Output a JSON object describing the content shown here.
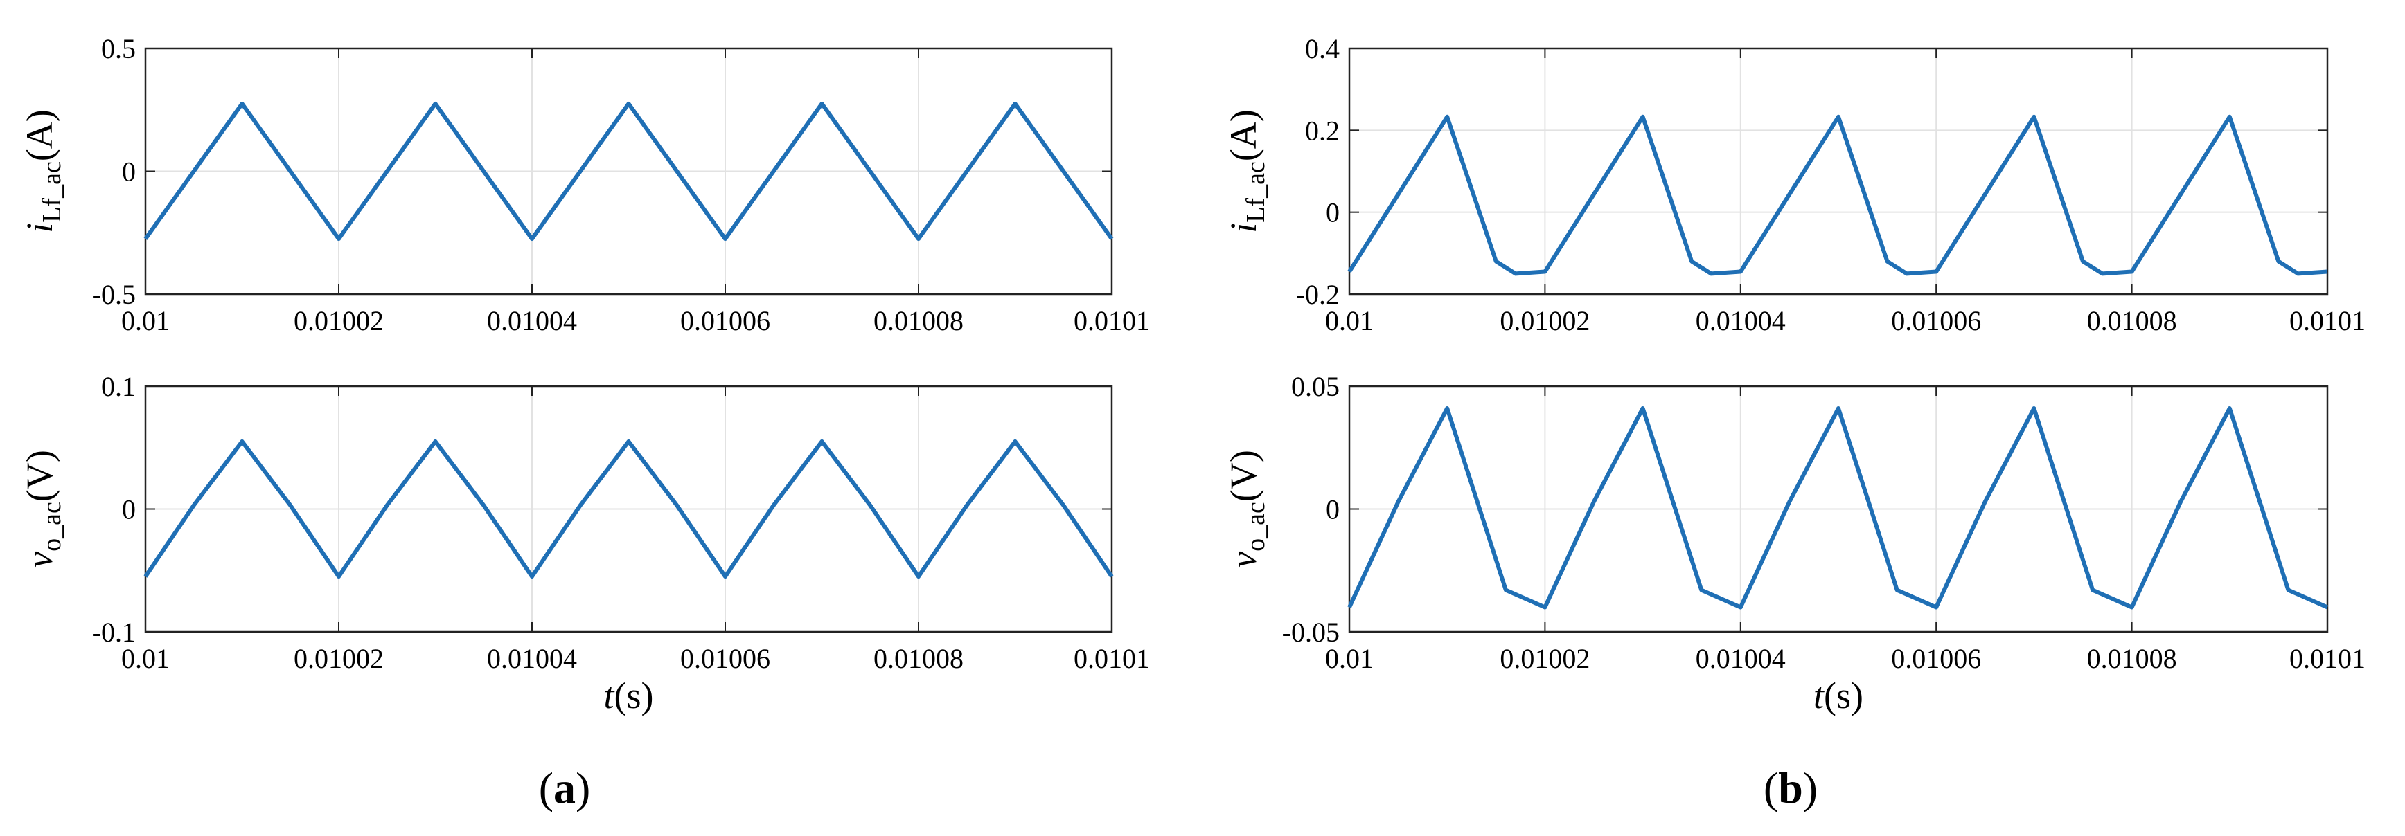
{
  "chart_data": [
    {
      "type": "line",
      "panel": "a",
      "color": "#1f6fb5",
      "xlim": [
        0.01,
        0.0101
      ],
      "ylim": [
        -0.5,
        0.5
      ],
      "xticks": [
        "0.01",
        "0.01002",
        "0.01004",
        "0.01006",
        "0.01008",
        "0.0101"
      ],
      "yticks": [
        "-0.5",
        "0",
        "0.5"
      ],
      "ylabel": {
        "main": "i",
        "sub": "Lf_ac",
        "unit": "(A)"
      },
      "grid": true,
      "series": [
        {
          "x": [
            0.01,
            0.01001,
            0.01002,
            0.01003,
            0.01004,
            0.01005,
            0.01006,
            0.01007,
            0.01008,
            0.01009,
            0.0101
          ],
          "y": [
            -0.275,
            0.275,
            -0.275,
            0.275,
            -0.275,
            0.275,
            -0.275,
            0.275,
            -0.275,
            0.275,
            -0.275
          ]
        }
      ]
    },
    {
      "type": "line",
      "panel": "a",
      "color": "#1f6fb5",
      "xlim": [
        0.01,
        0.0101
      ],
      "ylim": [
        -0.1,
        0.1
      ],
      "xticks": [
        "0.01",
        "0.01002",
        "0.01004",
        "0.01006",
        "0.01008",
        "0.0101"
      ],
      "yticks": [
        "-0.1",
        "0",
        "0.1"
      ],
      "ylabel": {
        "main": "v",
        "sub": "o_ac",
        "unit": "(V)"
      },
      "xlabel": {
        "main": "t",
        "unit": "(s)"
      },
      "grid": true,
      "series": [
        {
          "x": [
            0.01,
            0.010005,
            0.01001,
            0.010015,
            0.01002,
            0.010025,
            0.01003,
            0.010035,
            0.01004,
            0.010045,
            0.01005,
            0.010055,
            0.01006,
            0.010065,
            0.01007,
            0.010075,
            0.01008,
            0.010085,
            0.01009,
            0.010095,
            0.0101
          ],
          "y": [
            -0.055,
            0.003,
            0.055,
            0.003,
            -0.055,
            0.003,
            0.055,
            0.003,
            -0.055,
            0.003,
            0.055,
            0.003,
            -0.055,
            0.003,
            0.055,
            0.003,
            -0.055,
            0.003,
            0.055,
            0.003,
            -0.055
          ]
        }
      ]
    },
    {
      "type": "line",
      "panel": "b",
      "color": "#1f6fb5",
      "xlim": [
        0.01,
        0.0101
      ],
      "ylim": [
        -0.2,
        0.4
      ],
      "xticks": [
        "0.01",
        "0.01002",
        "0.01004",
        "0.01006",
        "0.01008",
        "0.0101"
      ],
      "yticks": [
        "-0.2",
        "0",
        "0.2",
        "0.4"
      ],
      "ylabel": {
        "main": "i",
        "sub": "Lf_ac",
        "unit": "(A)"
      },
      "grid": true,
      "series": [
        {
          "x": [
            0.01,
            0.01001,
            0.010015,
            0.010017,
            0.01002,
            0.01003,
            0.010035,
            0.010037,
            0.01004,
            0.01005,
            0.010055,
            0.010057,
            0.01006,
            0.01007,
            0.010075,
            0.010077,
            0.01008,
            0.01009,
            0.010095,
            0.010097,
            0.0101
          ],
          "y": [
            -0.145,
            0.233,
            -0.12,
            -0.15,
            -0.145,
            0.233,
            -0.12,
            -0.15,
            -0.145,
            0.233,
            -0.12,
            -0.15,
            -0.145,
            0.233,
            -0.12,
            -0.15,
            -0.145,
            0.233,
            -0.12,
            -0.15,
            -0.145
          ]
        }
      ]
    },
    {
      "type": "line",
      "panel": "b",
      "color": "#1f6fb5",
      "xlim": [
        0.01,
        0.0101
      ],
      "ylim": [
        -0.05,
        0.05
      ],
      "xticks": [
        "0.01",
        "0.01002",
        "0.01004",
        "0.01006",
        "0.01008",
        "0.0101"
      ],
      "yticks": [
        "-0.05",
        "0",
        "0.05"
      ],
      "ylabel": {
        "main": "v",
        "sub": "o_ac",
        "unit": "(V)"
      },
      "xlabel": {
        "main": "t",
        "unit": "(s)"
      },
      "grid": true,
      "series": [
        {
          "x": [
            0.01,
            0.010005,
            0.01001,
            0.010016,
            0.01002,
            0.010025,
            0.01003,
            0.010036,
            0.01004,
            0.010045,
            0.01005,
            0.010056,
            0.01006,
            0.010065,
            0.01007,
            0.010076,
            0.01008,
            0.010085,
            0.01009,
            0.010096,
            0.0101
          ],
          "y": [
            -0.04,
            0.003,
            0.041,
            -0.033,
            -0.04,
            0.003,
            0.041,
            -0.033,
            -0.04,
            0.003,
            0.041,
            -0.033,
            -0.04,
            0.003,
            0.041,
            -0.033,
            -0.04,
            0.003,
            0.041,
            -0.033,
            -0.04
          ]
        }
      ]
    }
  ],
  "panel_labels": {
    "a": "a",
    "b": "b"
  }
}
